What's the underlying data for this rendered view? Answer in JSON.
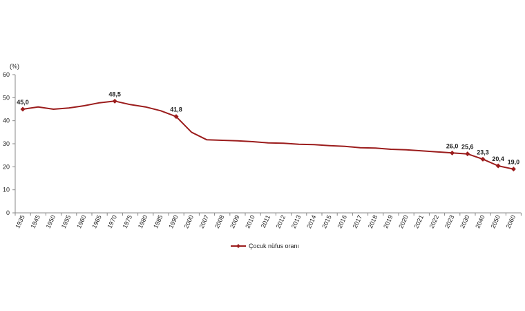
{
  "chart_data": {
    "type": "line",
    "ylabel": "(%)",
    "ylim": [
      0,
      60
    ],
    "yticks": [
      0,
      10,
      20,
      30,
      40,
      50,
      60
    ],
    "grid": false,
    "legend_position": "bottom-center",
    "colors": {
      "series": "#9b1c1c",
      "axis": "#888888",
      "text": "#222222"
    },
    "categories": [
      "1935",
      "1945",
      "1950",
      "1955",
      "1960",
      "1965",
      "1970",
      "1975",
      "1980",
      "1985",
      "1990",
      "2000",
      "2007",
      "2008",
      "2009",
      "2010",
      "2011",
      "2012",
      "2013",
      "2014",
      "2015",
      "2016",
      "2017",
      "2018",
      "2019",
      "2020",
      "2021",
      "2022",
      "2023",
      "2030",
      "2040",
      "2050",
      "2060"
    ],
    "series": [
      {
        "name": "Çocuk nüfus oranı",
        "marker": "diamond",
        "values": [
          45.0,
          46.0,
          45.0,
          45.5,
          46.5,
          47.8,
          48.5,
          47.0,
          46.0,
          44.3,
          41.8,
          35.0,
          31.7,
          31.5,
          31.3,
          30.9,
          30.4,
          30.2,
          29.8,
          29.6,
          29.2,
          28.9,
          28.3,
          28.1,
          27.6,
          27.4,
          26.9,
          26.5,
          26.0,
          25.6,
          23.3,
          20.4,
          19.0
        ],
        "labels": [
          "45,0",
          "",
          "",
          "",
          "",
          "",
          "48,5",
          "",
          "",
          "",
          "41,8",
          "",
          "",
          "",
          "",
          "",
          "",
          "",
          "",
          "",
          "",
          "",
          "",
          "",
          "",
          "",
          "",
          "",
          "26,0",
          "25,6",
          "23,3",
          "20,4",
          "19,0"
        ]
      }
    ]
  }
}
